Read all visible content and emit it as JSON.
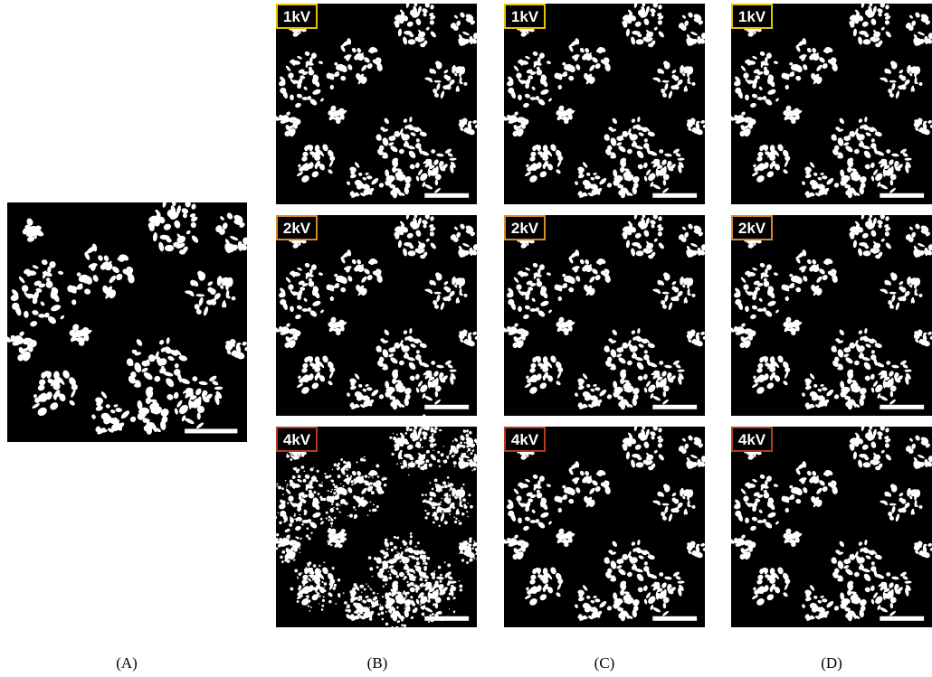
{
  "captions": [
    "(A)",
    "(B)",
    "(C)",
    "(D)"
  ],
  "badges": [
    {
      "label": "1kV",
      "color": "#e6c300"
    },
    {
      "label": "2kV",
      "color": "#d98a2b"
    },
    {
      "label": "4kV",
      "color": "#b8391d"
    }
  ]
}
